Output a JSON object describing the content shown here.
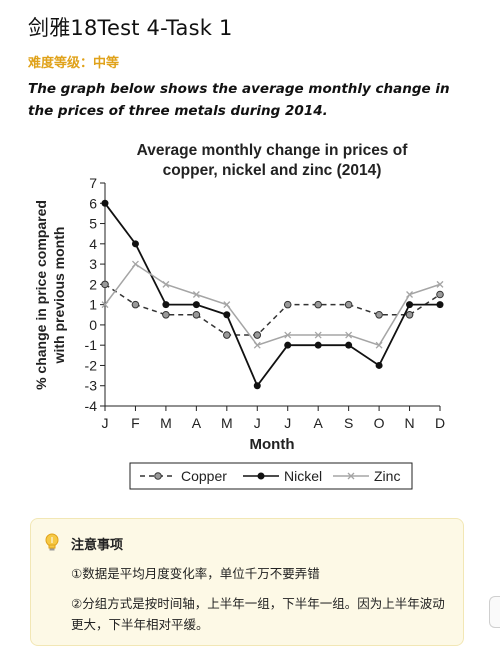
{
  "header": {
    "title": "剑雅18Test 4-Task 1",
    "level": "难度等级：中等",
    "prompt": "The graph below shows the average monthly change in the prices of three metals during 2014."
  },
  "chart_data": {
    "type": "line",
    "title_lines": [
      "Average monthly change in prices of",
      "copper, nickel and zinc (2014)"
    ],
    "xlabel": "Month",
    "ylabel_lines": [
      "% change in price compared",
      "with previous month"
    ],
    "categories": [
      "J",
      "F",
      "M",
      "A",
      "M",
      "J",
      "J",
      "A",
      "S",
      "O",
      "N",
      "D"
    ],
    "ylim": [
      -4,
      7
    ],
    "yticks": [
      "-4",
      "-3",
      "-2",
      "-1",
      "0",
      "1",
      "2",
      "3",
      "4",
      "5",
      "6",
      "7"
    ],
    "legend_position": "bottom",
    "series": [
      {
        "name": "Copper",
        "style": "dashed-circle",
        "color": "#333333",
        "values": [
          2,
          1,
          0.5,
          0.5,
          -0.5,
          -0.5,
          1,
          1,
          1,
          0.5,
          0.5,
          1.5
        ]
      },
      {
        "name": "Nickel",
        "style": "solid-dot",
        "color": "#111111",
        "values": [
          6,
          4,
          1,
          1,
          0.5,
          -3,
          -1,
          -1,
          -1,
          -2,
          1,
          1
        ]
      },
      {
        "name": "Zinc",
        "style": "cross",
        "color": "#a5a5a5",
        "values": [
          1,
          3,
          2,
          1.5,
          1,
          -1,
          -0.5,
          -0.5,
          -0.5,
          -1,
          1.5,
          2
        ]
      }
    ]
  },
  "note": {
    "heading": "注意事项",
    "point1": "①数据是平均月度变化率，单位千万不要弄错",
    "point2": "②分组方式是按时间轴，上半年一组，下半年一组。因为上半年波动更大，下半年相对平缓。"
  }
}
